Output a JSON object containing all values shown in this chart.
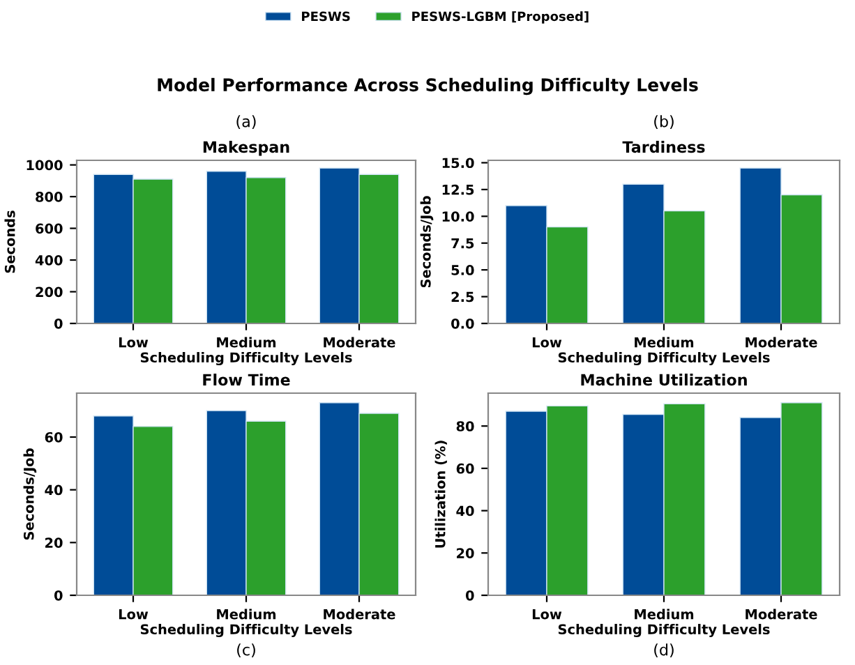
{
  "chart_data": [
    {
      "type": "bar",
      "title": "Makespan",
      "xlabel": "Scheduling Difficulty Levels",
      "ylabel": "Seconds",
      "annotations": [
        "Model Performance Across Scheduling Difficulty Levels",
        "(a)"
      ],
      "legend": "top",
      "categories": [
        "Low",
        "Medium",
        "Moderate"
      ],
      "series": [
        {
          "name": "PESWS",
          "color": "#004c97",
          "values": [
            940,
            960,
            980
          ]
        },
        {
          "name": "PESWS-LGBM [Proposed]",
          "color": "#2ca02c",
          "values": [
            910,
            920,
            940
          ]
        }
      ],
      "ylim": [
        0,
        1029
      ],
      "yticks": [
        0,
        200,
        400,
        600,
        800,
        1000
      ]
    },
    {
      "type": "bar",
      "title": "Tardiness",
      "xlabel": "Scheduling Difficulty Levels",
      "ylabel": "Seconds/Job",
      "annotations": [
        "(b)"
      ],
      "categories": [
        "Low",
        "Medium",
        "Moderate"
      ],
      "series": [
        {
          "color": "#004c97",
          "values": [
            11,
            13,
            14.5
          ]
        },
        {
          "color": "#2ca02c",
          "values": [
            9,
            10.5,
            12
          ]
        }
      ],
      "ylim": [
        0,
        15.225
      ],
      "yticks": [
        {
          "value": 0,
          "label": "0.0"
        },
        {
          "value": 2.5,
          "label": "2.5"
        },
        {
          "value": 5,
          "label": "5.0"
        },
        {
          "value": 7.5,
          "label": "7.5"
        },
        {
          "value": 10,
          "label": "10.0"
        },
        {
          "value": 12.5,
          "label": "12.5"
        },
        {
          "value": 15,
          "label": "15.0"
        }
      ]
    },
    {
      "type": "bar",
      "title": "Flow Time",
      "xlabel": "Scheduling Difficulty Levels",
      "ylabel": "Seconds/Job",
      "annotations": [
        "(c)"
      ],
      "categories": [
        "Low",
        "Medium",
        "Moderate"
      ],
      "series": [
        {
          "color": "#004c97",
          "values": [
            68,
            70,
            73
          ]
        },
        {
          "color": "#2ca02c",
          "values": [
            64,
            66,
            69
          ]
        }
      ],
      "ylim": [
        0,
        76.65
      ],
      "yticks": [
        0,
        20,
        40,
        60
      ]
    },
    {
      "type": "bar",
      "title": "Machine Utilization",
      "xlabel": "Scheduling Difficulty Levels",
      "ylabel": "Utilization (%)",
      "annotations": [
        "(d)"
      ],
      "categories": [
        "Low",
        "Medium",
        "Moderate"
      ],
      "series": [
        {
          "color": "#004c97",
          "values": [
            87,
            85.5,
            84
          ]
        },
        {
          "color": "#2ca02c",
          "values": [
            89.5,
            90.5,
            91
          ]
        }
      ],
      "ylim": [
        0,
        95.55
      ],
      "yticks": [
        0,
        20,
        40,
        60,
        80
      ]
    }
  ]
}
